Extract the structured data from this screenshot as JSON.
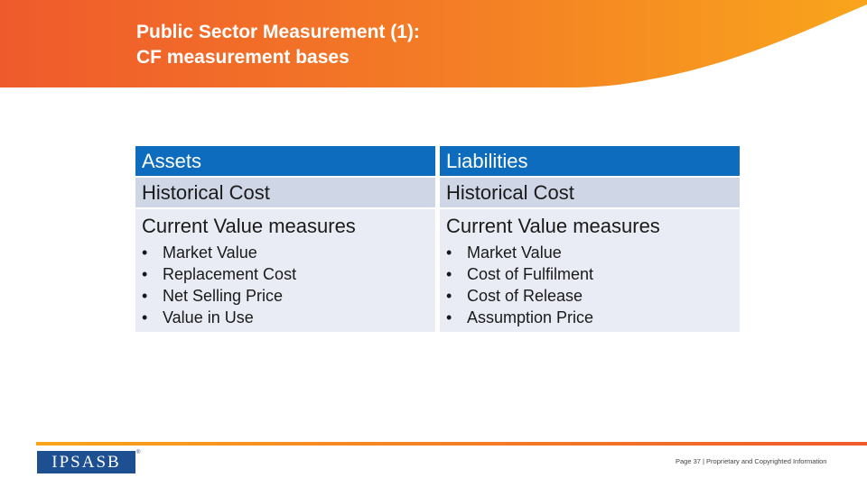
{
  "header": {
    "title_line1": "Public Sector Measurement (1):",
    "title_line2": "CF measurement bases"
  },
  "table": {
    "assets": {
      "heading": "Assets",
      "historical": "Historical Cost",
      "current": "Current Value measures",
      "bullets": [
        "Market Value",
        "Replacement Cost",
        "Net Selling Price",
        "Value in Use"
      ]
    },
    "liabilities": {
      "heading": "Liabilities",
      "historical": "Historical Cost",
      "current": "Current Value measures",
      "bullets": [
        "Market Value",
        "Cost of Fulfilment",
        "Cost of Release",
        "Assumption Price"
      ]
    },
    "bullet_char": "•"
  },
  "footer": {
    "logo_text": "IPSASB",
    "registered_mark": "®",
    "page_note": "Page 37 | Proprietary and Copyrighted Information"
  },
  "colors": {
    "banner_start": "#ef5b2b",
    "banner_end": "#f9a11e",
    "header_blue": "#0d6cbd",
    "row_light": "#cfd6e6",
    "row_lighter": "#e9ecf4",
    "logo_blue": "#1d4f91"
  }
}
